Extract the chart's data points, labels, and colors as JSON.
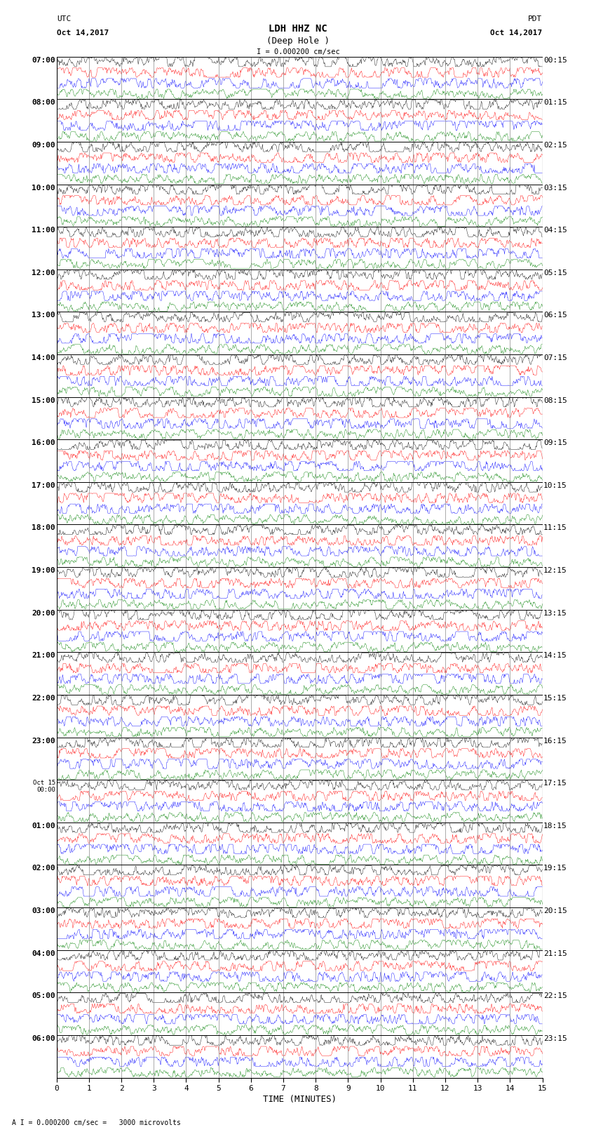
{
  "title_line1": "LDH HHZ NC",
  "title_line2": "(Deep Hole )",
  "scale_text": "I = 0.000200 cm/sec",
  "left_header1": "UTC",
  "left_header2": "Oct 14,2017",
  "right_header1": "PDT",
  "right_header2": "Oct 14,2017",
  "xlabel": "TIME (MINUTES)",
  "footnote": "A I = 0.000200 cm/sec =   3000 microvolts",
  "bg_color": "#ffffff",
  "colors": [
    "black",
    "red",
    "blue",
    "green"
  ],
  "n_groups": 24,
  "minutes_per_row": 15,
  "left_times": [
    "07:00",
    "08:00",
    "09:00",
    "10:00",
    "11:00",
    "12:00",
    "13:00",
    "14:00",
    "15:00",
    "16:00",
    "17:00",
    "18:00",
    "19:00",
    "20:00",
    "21:00",
    "22:00",
    "23:00",
    "Oct 15\n00:00",
    "01:00",
    "02:00",
    "03:00",
    "04:00",
    "05:00",
    "06:00"
  ],
  "right_times": [
    "00:15",
    "01:15",
    "02:15",
    "03:15",
    "04:15",
    "05:15",
    "06:15",
    "07:15",
    "08:15",
    "09:15",
    "10:15",
    "11:15",
    "12:15",
    "13:15",
    "14:15",
    "15:15",
    "16:15",
    "17:15",
    "18:15",
    "19:15",
    "20:15",
    "21:15",
    "22:15",
    "23:15"
  ],
  "noise_amps_rel": [
    0.38,
    0.38,
    0.42,
    0.3
  ],
  "fig_width": 8.5,
  "fig_height": 16.13,
  "dpi": 100
}
